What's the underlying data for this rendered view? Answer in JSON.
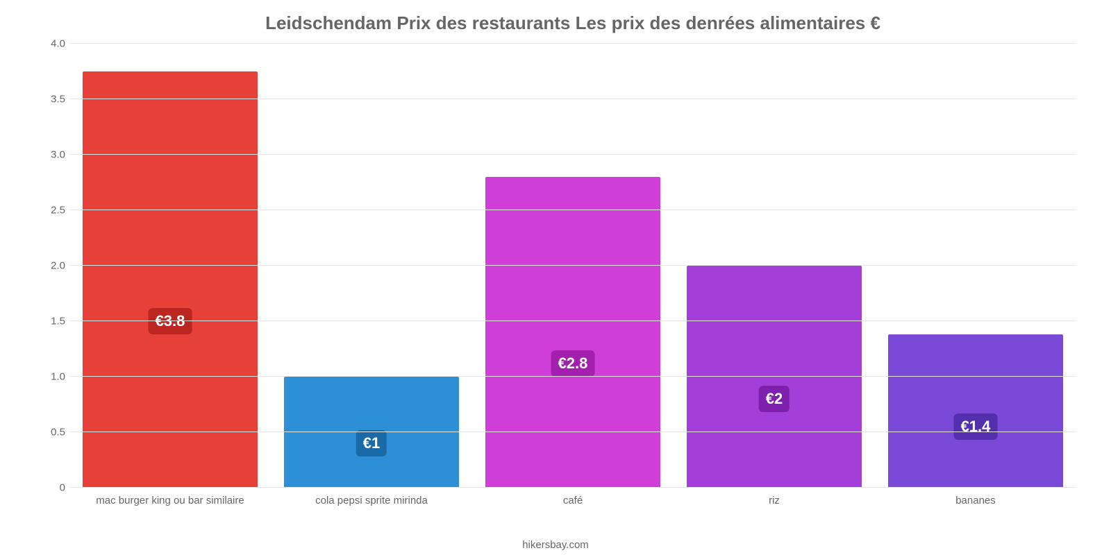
{
  "chart": {
    "type": "bar",
    "title": "Leidschendam Prix des restaurants Les prix des denrées alimentaires €",
    "title_fontsize": 26,
    "title_color": "#666666",
    "background_color": "#ffffff",
    "grid_color": "#e6e6e6",
    "axis_color": "#666666",
    "tick_label_color": "#666666",
    "tick_label_fontsize": 15,
    "x_label_fontsize": 15,
    "value_label_fontsize": 22,
    "value_label_color": "#ffffff",
    "bar_width": 0.87,
    "ylim": [
      0,
      4.0
    ],
    "yticks": [
      0,
      0.5,
      1.0,
      1.5,
      2.0,
      2.5,
      3.0,
      3.5,
      4.0
    ],
    "ytick_labels": [
      "0",
      "0.5",
      "1.0",
      "1.5",
      "2.0",
      "2.5",
      "3.0",
      "3.5",
      "4.0"
    ],
    "categories": [
      "mac burger king ou bar similaire",
      "cola pepsi sprite mirinda",
      "café",
      "riz",
      "bananes"
    ],
    "values": [
      3.75,
      1.0,
      2.8,
      2.0,
      1.38
    ],
    "value_labels": [
      "€3.8",
      "€1",
      "€2.8",
      "€2",
      "€1.4"
    ],
    "bar_colors": [
      "#e74039",
      "#2d8fd6",
      "#cf3fd8",
      "#a33ed8",
      "#7b49d8"
    ],
    "badge_colors": [
      "#bb2720",
      "#1a6aa8",
      "#a31fad",
      "#7d21ad",
      "#532ead"
    ],
    "footer": "hikersbay.com",
    "footer_color": "#666666",
    "footer_fontsize": 15
  }
}
